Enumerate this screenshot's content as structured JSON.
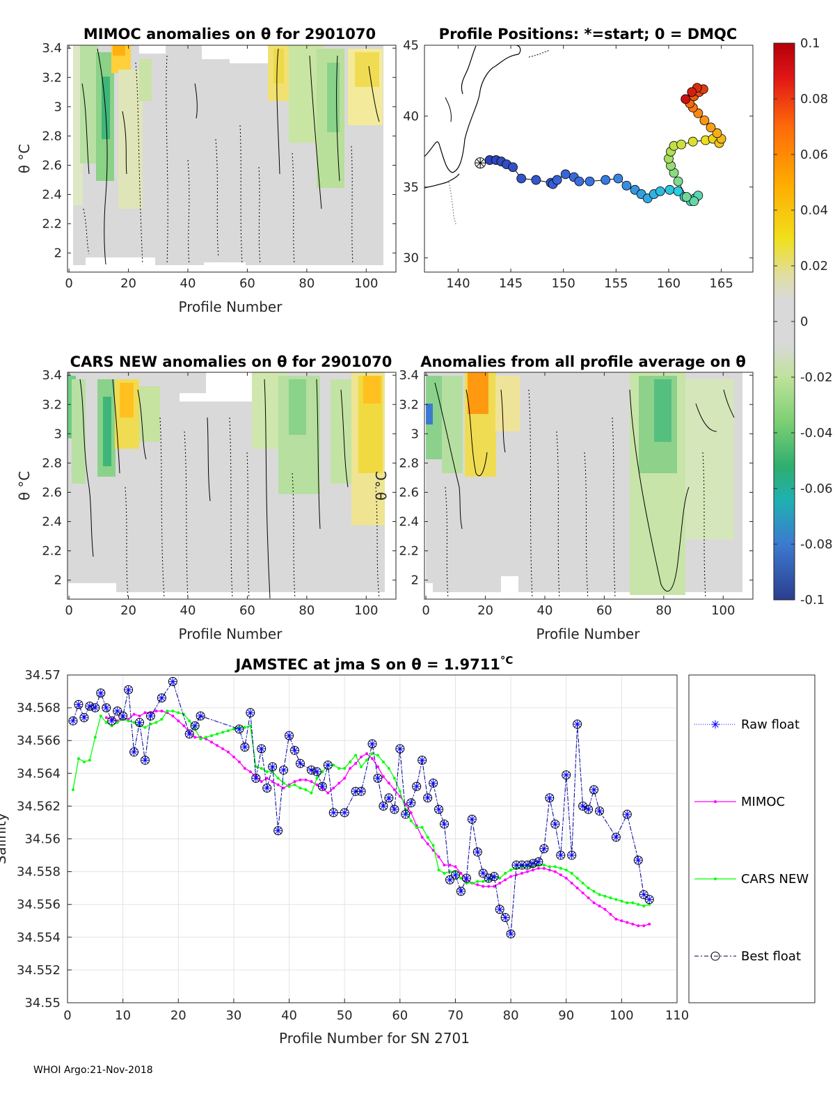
{
  "footer": "WHOI Argo:21-Nov-2018",
  "panels": {
    "mimoc": {
      "title": "MIMOC anomalies on θ  for 2901070",
      "xlabel": "Profile Number",
      "ylabel": "θ °C",
      "xticks": [
        "0",
        "20",
        "40",
        "60",
        "80",
        "100"
      ],
      "yticks": [
        "2",
        "2.2",
        "2.4",
        "2.6",
        "2.8",
        "3",
        "3.2",
        "3.4"
      ]
    },
    "positions": {
      "title": "Profile Positions: *=start; 0 = DMQC",
      "xticks": [
        "140",
        "145",
        "150",
        "155",
        "160",
        "165"
      ],
      "yticks": [
        "30",
        "35",
        "40",
        "45"
      ]
    },
    "cars": {
      "title": "CARS NEW anomalies on θ for 2901070",
      "xlabel": "Profile Number",
      "ylabel": "θ °C",
      "xticks": [
        "0",
        "20",
        "40",
        "60",
        "80",
        "100"
      ],
      "yticks": [
        "2",
        "2.2",
        "2.4",
        "2.6",
        "2.8",
        "3",
        "3.2",
        "3.4"
      ]
    },
    "allavg": {
      "title": "Anomalies from all profile average on θ",
      "xlabel": "Profile Number",
      "ylabel": "θ °C",
      "xticks": [
        "0",
        "20",
        "40",
        "60",
        "80",
        "100"
      ],
      "yticks": [
        "2",
        "2.2",
        "2.4",
        "2.6",
        "2.8",
        "3",
        "3.2",
        "3.4"
      ]
    },
    "colorbar": {
      "ticks": [
        "0.1",
        "0.08",
        "0.06",
        "0.04",
        "0.02",
        "0",
        "-0.02",
        "-0.04",
        "-0.06",
        "-0.08",
        "-0.1"
      ]
    }
  },
  "chart_data": {
    "type": "line",
    "title": "JAMSTEC at jma S on θ = 1.9711",
    "title_unit": "°C",
    "xlabel": "Profile Number for SN 2701",
    "ylabel": "Salinity",
    "xlim": [
      0,
      110
    ],
    "ylim": [
      34.55,
      34.57
    ],
    "xticks": [
      "0",
      "10",
      "20",
      "30",
      "40",
      "50",
      "60",
      "70",
      "80",
      "90",
      "100",
      "110"
    ],
    "yticks": [
      "34.55",
      "34.552",
      "34.554",
      "34.556",
      "34.558",
      "34.56",
      "34.562",
      "34.564",
      "34.566",
      "34.568",
      "34.57"
    ],
    "grid": true,
    "legend": [
      "Raw float",
      "MIMOC",
      "CARS NEW",
      "Best float"
    ],
    "colors": {
      "raw": "#0000ff",
      "mimoc": "#ff00ff",
      "cars": "#00ff00",
      "best": "#000080"
    },
    "series": {
      "best_float": {
        "x": [
          1,
          2,
          3,
          4,
          5,
          6,
          7,
          8,
          9,
          10,
          11,
          12,
          13,
          14,
          15,
          17,
          19,
          22,
          23,
          24,
          31,
          32,
          33,
          34,
          35,
          36,
          37,
          38,
          39,
          40,
          41,
          42,
          44,
          45,
          46,
          47,
          48,
          50,
          52,
          53,
          55,
          56,
          57,
          58,
          59,
          60,
          61,
          62,
          63,
          64,
          65,
          66,
          67,
          68,
          69,
          70,
          71,
          72,
          73,
          74,
          75,
          76,
          77,
          78,
          79,
          80,
          81,
          82,
          83,
          84,
          85,
          86,
          87,
          88,
          89,
          90,
          91,
          92,
          93,
          94,
          95,
          96,
          99,
          101,
          103,
          104,
          105
        ],
        "y": [
          34.5672,
          34.5682,
          34.5674,
          34.5681,
          34.568,
          34.5689,
          34.568,
          34.5672,
          34.5678,
          34.5675,
          34.5691,
          34.5653,
          34.5671,
          34.5648,
          34.5675,
          34.5686,
          34.5696,
          34.5664,
          34.5669,
          34.5675,
          34.5667,
          34.5656,
          34.5677,
          34.5637,
          34.5655,
          34.5631,
          34.5644,
          34.5605,
          34.5642,
          34.5663,
          34.5654,
          34.5646,
          34.5642,
          34.5641,
          34.5632,
          34.5645,
          34.5616,
          34.5616,
          34.5629,
          34.5629,
          34.5658,
          34.5637,
          34.562,
          34.5625,
          34.5618,
          34.5655,
          34.5615,
          34.5622,
          34.5632,
          34.5648,
          34.5625,
          34.5634,
          34.5618,
          34.5609,
          34.5575,
          34.5578,
          34.5568,
          34.5576,
          34.5612,
          34.5592,
          34.5579,
          34.5576,
          34.5577,
          34.5557,
          34.5552,
          34.5542,
          34.5584,
          34.5584,
          34.5584,
          34.5585,
          34.5586,
          34.5594,
          34.5625,
          34.5609,
          34.559,
          34.5639,
          34.559,
          34.567,
          34.562,
          34.5618,
          34.563,
          34.5617,
          34.5601,
          34.5615,
          34.5587,
          34.5566,
          34.5563
        ]
      },
      "mimoc": {
        "x": [
          7,
          8,
          9,
          10,
          11,
          12,
          13,
          14,
          15,
          16,
          17,
          18,
          19,
          20,
          21,
          22,
          23,
          24,
          25,
          26,
          27,
          28,
          29,
          30,
          31,
          32,
          33,
          34,
          35,
          36,
          37,
          38,
          39,
          40,
          41,
          42,
          43,
          44,
          45,
          46,
          47,
          48,
          49,
          50,
          51,
          52,
          53,
          54,
          55,
          56,
          57,
          58,
          59,
          60,
          61,
          62,
          63,
          64,
          65,
          66,
          67,
          68,
          69,
          70,
          71,
          72,
          73,
          74,
          75,
          76,
          77,
          78,
          79,
          80,
          81,
          82,
          83,
          84,
          85,
          86,
          87,
          88,
          89,
          90,
          91,
          92,
          93,
          94,
          95,
          96,
          97,
          98,
          99,
          100,
          101,
          102,
          103,
          104,
          105
        ],
        "y": [
          34.5674,
          34.5673,
          34.5672,
          34.5674,
          34.5673,
          34.5676,
          34.5675,
          34.5677,
          34.5677,
          34.5678,
          34.5678,
          34.5677,
          34.5675,
          34.5672,
          34.5669,
          34.5665,
          34.5662,
          34.5662,
          34.5661,
          34.5659,
          34.5657,
          34.5655,
          34.5653,
          34.565,
          34.5647,
          34.5643,
          34.5641,
          34.5638,
          34.5635,
          34.5637,
          34.5635,
          34.5633,
          34.5631,
          34.5633,
          34.5635,
          34.5636,
          34.5636,
          34.5635,
          34.5633,
          34.5631,
          34.5628,
          34.5631,
          34.5634,
          34.5637,
          34.5643,
          34.5646,
          34.565,
          34.5652,
          34.5649,
          34.5644,
          34.5638,
          34.5634,
          34.563,
          34.5626,
          34.5621,
          34.5616,
          34.5608,
          34.5601,
          34.5597,
          34.5593,
          34.5589,
          34.5584,
          34.5584,
          34.5583,
          34.5579,
          34.5575,
          34.5573,
          34.5572,
          34.5571,
          34.5571,
          34.5571,
          34.5573,
          34.5575,
          34.5577,
          34.5578,
          34.5579,
          34.558,
          34.5581,
          34.5582,
          34.5582,
          34.5581,
          34.558,
          34.5578,
          34.5576,
          34.5573,
          34.557,
          34.5567,
          34.5564,
          34.5561,
          34.5559,
          34.5557,
          34.5554,
          34.5551,
          34.555,
          34.5549,
          34.5548,
          34.5547,
          34.5547,
          34.5548
        ]
      },
      "cars": {
        "x": [
          1,
          2,
          3,
          4,
          5,
          6,
          7,
          8,
          9,
          10,
          11,
          12,
          13,
          14,
          15,
          16,
          17,
          18,
          19,
          20,
          21,
          22,
          23,
          24,
          25,
          26,
          27,
          28,
          29,
          30,
          31,
          32,
          33,
          34,
          35,
          36,
          37,
          38,
          39,
          40,
          41,
          42,
          43,
          44,
          45,
          46,
          47,
          48,
          49,
          50,
          51,
          52,
          53,
          54,
          55,
          56,
          57,
          58,
          59,
          60,
          61,
          62,
          63,
          64,
          65,
          66,
          67,
          68,
          69,
          70,
          71,
          72,
          73,
          74,
          75,
          76,
          77,
          78,
          79,
          80,
          81,
          82,
          83,
          84,
          85,
          86,
          87,
          88,
          89,
          90,
          91,
          92,
          93,
          94,
          95,
          96,
          97,
          98,
          99,
          100,
          101,
          102,
          103,
          104,
          105
        ],
        "y": [
          34.563,
          34.5649,
          34.5647,
          34.5648,
          34.5662,
          34.5675,
          34.5671,
          34.5669,
          34.5671,
          34.5673,
          34.5672,
          34.5671,
          34.5669,
          34.5668,
          34.567,
          34.5671,
          34.5673,
          34.5678,
          34.5678,
          34.5677,
          34.5676,
          34.5672,
          34.5667,
          34.5661,
          34.5662,
          34.5663,
          34.5664,
          34.5665,
          34.5666,
          34.5667,
          34.5668,
          34.5668,
          34.5669,
          34.5644,
          34.5643,
          34.5641,
          34.5641,
          34.5637,
          34.5634,
          34.5632,
          34.5633,
          34.5631,
          34.563,
          34.5628,
          34.5637,
          34.5641,
          34.5645,
          34.5645,
          34.5643,
          34.5643,
          34.5647,
          34.5651,
          34.5644,
          34.5648,
          34.5652,
          34.5651,
          34.5647,
          34.5643,
          34.5637,
          34.5629,
          34.5618,
          34.5611,
          34.5607,
          34.5607,
          34.5601,
          34.5596,
          34.5581,
          34.5579,
          34.558,
          34.558,
          34.5576,
          34.5573,
          34.5573,
          34.5574,
          34.5574,
          34.5575,
          34.5577,
          34.5576,
          34.5579,
          34.5581,
          34.5582,
          34.5583,
          34.5583,
          34.5583,
          34.5584,
          34.5584,
          34.5583,
          34.5583,
          34.5582,
          34.5581,
          34.5579,
          34.5576,
          34.5573,
          34.557,
          34.5568,
          34.5566,
          34.5565,
          34.5564,
          34.5563,
          34.5562,
          34.5561,
          34.5561,
          34.556,
          34.5559,
          34.556
        ]
      }
    }
  }
}
